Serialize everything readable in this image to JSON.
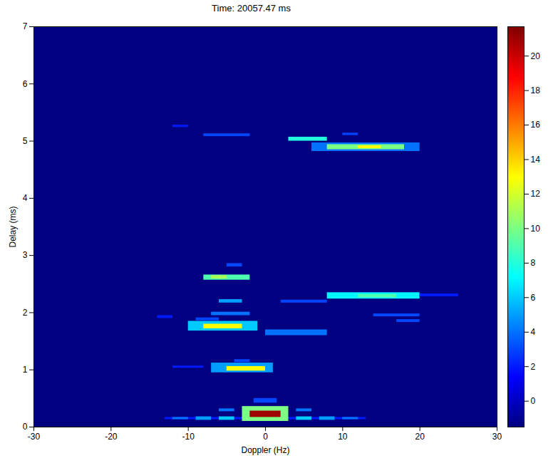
{
  "chart_data": {
    "type": "heatmap",
    "title": "Time: 20057.47 ms",
    "x_label": "Doppler (Hz)",
    "y_label": "Delay (ms)",
    "xlim": [
      -30,
      30
    ],
    "xticks": [
      -30,
      -20,
      -10,
      0,
      10,
      20,
      30
    ],
    "ylim": [
      0,
      7
    ],
    "yticks": [
      0,
      1,
      2,
      3,
      4,
      5,
      6,
      7
    ],
    "background_value": -1.5,
    "cells": [
      {
        "doppler": [
          -13,
          13
        ],
        "delay": [
          0.13,
          0.17
        ],
        "value": 2
      },
      {
        "doppler": [
          -12,
          -10
        ],
        "delay": [
          0.13,
          0.17
        ],
        "value": 4
      },
      {
        "doppler": [
          10,
          12
        ],
        "delay": [
          0.13,
          0.17
        ],
        "value": 4
      },
      {
        "doppler": [
          -9,
          -7
        ],
        "delay": [
          0.12,
          0.18
        ],
        "value": 5
      },
      {
        "doppler": [
          7,
          9
        ],
        "delay": [
          0.12,
          0.18
        ],
        "value": 5
      },
      {
        "doppler": [
          -6,
          -4
        ],
        "delay": [
          0.12,
          0.18
        ],
        "value": 6
      },
      {
        "doppler": [
          4,
          6
        ],
        "delay": [
          0.12,
          0.18
        ],
        "value": 6
      },
      {
        "doppler": [
          -6,
          -4
        ],
        "delay": [
          0.27,
          0.32
        ],
        "value": 4
      },
      {
        "doppler": [
          4,
          6
        ],
        "delay": [
          0.27,
          0.32
        ],
        "value": 4
      },
      {
        "doppler": [
          -1.5,
          1.5
        ],
        "delay": [
          0.42,
          0.5
        ],
        "value": 3
      },
      {
        "doppler": [
          -3,
          3
        ],
        "delay": [
          0.1,
          0.36
        ],
        "value": 10
      },
      {
        "doppler": [
          -2,
          2
        ],
        "delay": [
          0.17,
          0.28
        ],
        "value": 21
      },
      {
        "doppler": [
          -12,
          -8
        ],
        "delay": [
          1.03,
          1.07
        ],
        "value": 2
      },
      {
        "doppler": [
          -7,
          1
        ],
        "delay": [
          0.95,
          1.12
        ],
        "value": 5
      },
      {
        "doppler": [
          -5,
          0
        ],
        "delay": [
          0.98,
          1.06
        ],
        "value": 13
      },
      {
        "doppler": [
          -4,
          -2
        ],
        "delay": [
          1.13,
          1.18
        ],
        "value": 3
      },
      {
        "doppler": [
          -10,
          -1
        ],
        "delay": [
          1.68,
          1.85
        ],
        "value": 6
      },
      {
        "doppler": [
          -8,
          -3
        ],
        "delay": [
          1.72,
          1.8
        ],
        "value": 13
      },
      {
        "doppler": [
          0,
          8
        ],
        "delay": [
          1.6,
          1.7
        ],
        "value": 4
      },
      {
        "doppler": [
          -9,
          -6
        ],
        "delay": [
          1.86,
          1.91
        ],
        "value": 3
      },
      {
        "doppler": [
          -7,
          -2
        ],
        "delay": [
          1.95,
          2.01
        ],
        "value": 4
      },
      {
        "doppler": [
          -14,
          -12
        ],
        "delay": [
          1.9,
          1.95
        ],
        "value": 2
      },
      {
        "doppler": [
          -6,
          -3
        ],
        "delay": [
          2.17,
          2.23
        ],
        "value": 5
      },
      {
        "doppler": [
          -8,
          -2
        ],
        "delay": [
          2.57,
          2.66
        ],
        "value": 9
      },
      {
        "doppler": [
          -7,
          -5
        ],
        "delay": [
          2.59,
          2.65
        ],
        "value": 11
      },
      {
        "doppler": [
          -5,
          -3
        ],
        "delay": [
          2.8,
          2.86
        ],
        "value": 3
      },
      {
        "doppler": [
          2,
          8
        ],
        "delay": [
          2.17,
          2.22
        ],
        "value": 3
      },
      {
        "doppler": [
          8,
          20
        ],
        "delay": [
          2.24,
          2.35
        ],
        "value": 7
      },
      {
        "doppler": [
          12,
          17
        ],
        "delay": [
          2.26,
          2.32
        ],
        "value": 9
      },
      {
        "doppler": [
          20,
          25
        ],
        "delay": [
          2.28,
          2.33
        ],
        "value": 2
      },
      {
        "doppler": [
          14,
          20
        ],
        "delay": [
          1.93,
          1.98
        ],
        "value": 3
      },
      {
        "doppler": [
          17,
          20
        ],
        "delay": [
          1.83,
          1.88
        ],
        "value": 3
      },
      {
        "doppler": [
          6,
          20
        ],
        "delay": [
          4.82,
          4.97
        ],
        "value": 4
      },
      {
        "doppler": [
          8,
          18
        ],
        "delay": [
          4.85,
          4.94
        ],
        "value": 10
      },
      {
        "doppler": [
          12,
          15
        ],
        "delay": [
          4.87,
          4.92
        ],
        "value": 13
      },
      {
        "doppler": [
          3,
          8
        ],
        "delay": [
          5.0,
          5.07
        ],
        "value": 8
      },
      {
        "doppler": [
          -8,
          -2
        ],
        "delay": [
          5.08,
          5.13
        ],
        "value": 3
      },
      {
        "doppler": [
          10,
          12
        ],
        "delay": [
          5.1,
          5.14
        ],
        "value": 3
      },
      {
        "doppler": [
          -12,
          -10
        ],
        "delay": [
          5.24,
          5.28
        ],
        "value": 2
      }
    ],
    "colorbar": {
      "lim": [
        -1.5,
        21.7
      ],
      "ticks": [
        0,
        2,
        4,
        6,
        8,
        10,
        12,
        14,
        16,
        18,
        20
      ]
    }
  }
}
